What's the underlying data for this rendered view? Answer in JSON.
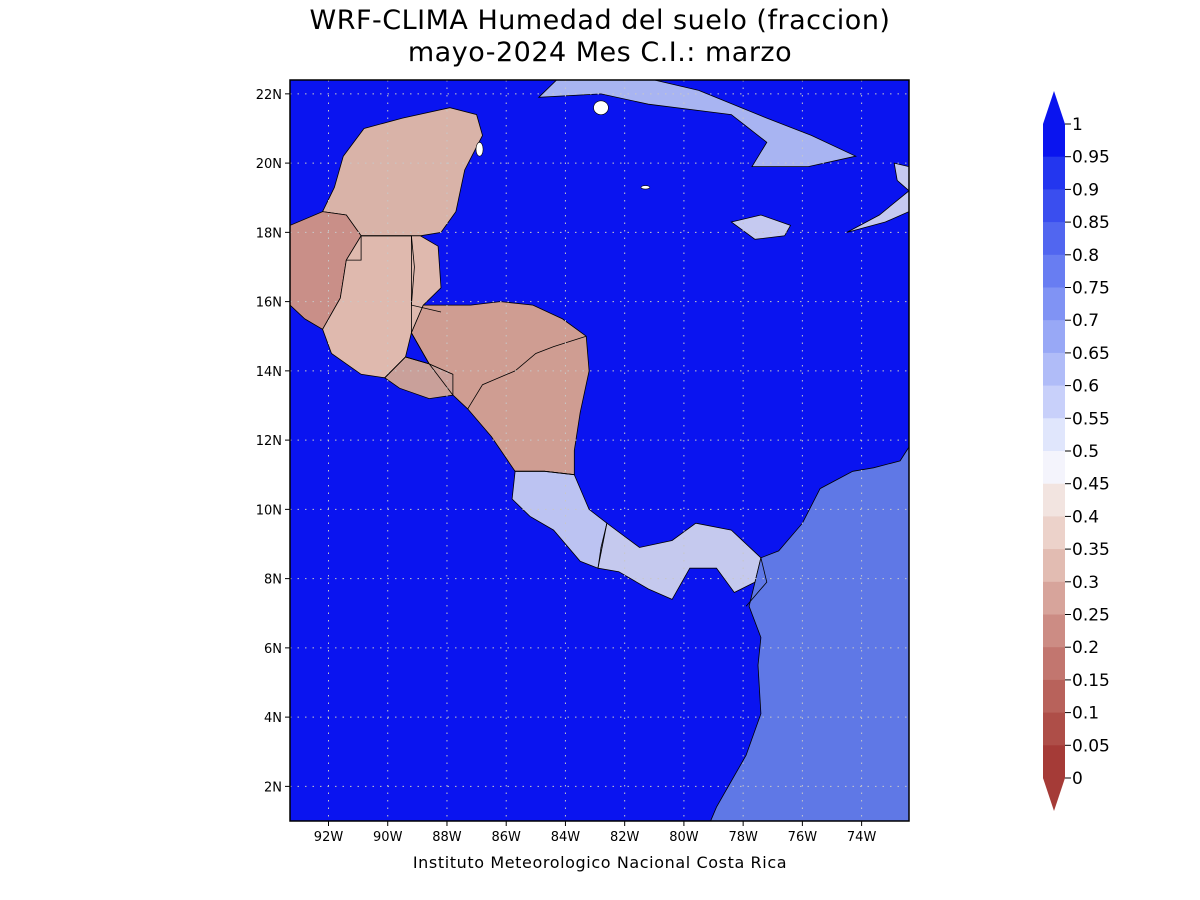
{
  "title": "WRF-CLIMA Humedad del suelo (fraccion)",
  "subtitle": "mayo-2024 Mes C.I.: marzo",
  "credit": "Instituto Meteorologico Nacional Costa Rica",
  "map": {
    "lon_range": [
      -93.3,
      -72.4
    ],
    "lat_range": [
      1.0,
      22.4
    ],
    "lat_ticks": [
      {
        "value": 22,
        "label": "22N"
      },
      {
        "value": 20,
        "label": "20N"
      },
      {
        "value": 18,
        "label": "18N"
      },
      {
        "value": 16,
        "label": "16N"
      },
      {
        "value": 14,
        "label": "14N"
      },
      {
        "value": 12,
        "label": "12N"
      },
      {
        "value": 10,
        "label": "10N"
      },
      {
        "value": 8,
        "label": "8N"
      },
      {
        "value": 6,
        "label": "6N"
      },
      {
        "value": 4,
        "label": "4N"
      },
      {
        "value": 2,
        "label": "2N"
      }
    ],
    "lon_ticks": [
      {
        "value": -92,
        "label": "92W"
      },
      {
        "value": -90,
        "label": "90W"
      },
      {
        "value": -88,
        "label": "88W"
      },
      {
        "value": -86,
        "label": "86W"
      },
      {
        "value": -84,
        "label": "84W"
      },
      {
        "value": -82,
        "label": "82W"
      },
      {
        "value": -80,
        "label": "80W"
      },
      {
        "value": -78,
        "label": "78W"
      },
      {
        "value": -76,
        "label": "76W"
      },
      {
        "value": -74,
        "label": "74W"
      }
    ],
    "ocean_color": "#0a14f0",
    "regions": [
      {
        "name": "yucatan",
        "fill": "#d9b3a8",
        "points": [
          [
            -91.5,
            20.2
          ],
          [
            -90.8,
            21.0
          ],
          [
            -89.5,
            21.3
          ],
          [
            -87.9,
            21.6
          ],
          [
            -87.0,
            21.4
          ],
          [
            -86.8,
            20.8
          ],
          [
            -87.4,
            19.8
          ],
          [
            -87.7,
            18.6
          ],
          [
            -88.2,
            18.0
          ],
          [
            -88.9,
            17.9
          ],
          [
            -90.9,
            17.9
          ],
          [
            -91.4,
            18.5
          ],
          [
            -92.2,
            18.6
          ],
          [
            -91.8,
            19.3
          ]
        ]
      },
      {
        "name": "southern-mexico",
        "fill": "#c98f88",
        "points": [
          [
            -93.3,
            18.2
          ],
          [
            -92.2,
            18.6
          ],
          [
            -91.4,
            18.5
          ],
          [
            -90.9,
            17.9
          ],
          [
            -91.4,
            17.2
          ],
          [
            -91.6,
            16.1
          ],
          [
            -92.2,
            15.2
          ],
          [
            -92.8,
            15.5
          ],
          [
            -93.3,
            15.9
          ]
        ]
      },
      {
        "name": "guatemala-belize",
        "fill": "#dfb9ae",
        "points": [
          [
            -90.9,
            17.9
          ],
          [
            -88.9,
            17.9
          ],
          [
            -88.3,
            17.6
          ],
          [
            -88.2,
            16.4
          ],
          [
            -88.8,
            15.9
          ],
          [
            -89.2,
            15.1
          ],
          [
            -89.4,
            14.4
          ],
          [
            -90.1,
            13.8
          ],
          [
            -90.9,
            13.9
          ],
          [
            -91.9,
            14.5
          ],
          [
            -92.2,
            15.2
          ],
          [
            -91.6,
            16.1
          ],
          [
            -91.4,
            17.2
          ]
        ]
      },
      {
        "name": "el-salvador",
        "fill": "#c9a09a",
        "points": [
          [
            -90.1,
            13.8
          ],
          [
            -89.4,
            14.4
          ],
          [
            -88.6,
            14.2
          ],
          [
            -87.8,
            13.9
          ],
          [
            -87.8,
            13.3
          ],
          [
            -88.6,
            13.2
          ],
          [
            -89.6,
            13.5
          ]
        ]
      },
      {
        "name": "honduras-nicaragua",
        "fill": "#cf9d92",
        "points": [
          [
            -89.2,
            15.1
          ],
          [
            -88.8,
            15.9
          ],
          [
            -88.0,
            15.9
          ],
          [
            -87.2,
            15.9
          ],
          [
            -86.2,
            16.0
          ],
          [
            -85.1,
            15.9
          ],
          [
            -84.1,
            15.5
          ],
          [
            -83.3,
            15.0
          ],
          [
            -83.2,
            14.0
          ],
          [
            -83.5,
            12.8
          ],
          [
            -83.7,
            11.7
          ],
          [
            -83.7,
            11.0
          ],
          [
            -84.7,
            11.1
          ],
          [
            -85.7,
            11.1
          ],
          [
            -86.5,
            12.1
          ],
          [
            -87.3,
            12.9
          ],
          [
            -87.8,
            13.3
          ],
          [
            -87.8,
            13.9
          ],
          [
            -88.6,
            14.2
          ]
        ]
      },
      {
        "name": "costa-rica",
        "fill": "#bcc3f2",
        "points": [
          [
            -85.7,
            11.1
          ],
          [
            -84.7,
            11.1
          ],
          [
            -83.7,
            11.0
          ],
          [
            -83.2,
            10.0
          ],
          [
            -82.6,
            9.6
          ],
          [
            -82.9,
            8.3
          ],
          [
            -83.5,
            8.5
          ],
          [
            -84.4,
            9.4
          ],
          [
            -85.2,
            9.8
          ],
          [
            -85.8,
            10.3
          ]
        ]
      },
      {
        "name": "panama",
        "fill": "#c5c9ee",
        "points": [
          [
            -82.6,
            9.6
          ],
          [
            -81.5,
            8.9
          ],
          [
            -80.4,
            9.1
          ],
          [
            -79.6,
            9.6
          ],
          [
            -78.4,
            9.4
          ],
          [
            -77.4,
            8.6
          ],
          [
            -77.6,
            7.9
          ],
          [
            -78.3,
            7.6
          ],
          [
            -78.9,
            8.3
          ],
          [
            -79.8,
            8.3
          ],
          [
            -80.4,
            7.4
          ],
          [
            -81.2,
            7.7
          ],
          [
            -82.2,
            8.2
          ],
          [
            -82.9,
            8.3
          ]
        ]
      },
      {
        "name": "colombia",
        "fill": "#5f78e6",
        "points": [
          [
            -72.4,
            11.8
          ],
          [
            -72.7,
            11.4
          ],
          [
            -73.6,
            11.2
          ],
          [
            -74.3,
            11.1
          ],
          [
            -75.4,
            10.6
          ],
          [
            -76.0,
            9.6
          ],
          [
            -76.8,
            8.8
          ],
          [
            -77.4,
            8.6
          ],
          [
            -77.6,
            7.9
          ],
          [
            -77.8,
            7.2
          ],
          [
            -77.4,
            6.3
          ],
          [
            -77.5,
            5.5
          ],
          [
            -77.4,
            4.1
          ],
          [
            -77.9,
            2.9
          ],
          [
            -78.9,
            1.4
          ],
          [
            -79.1,
            1.0
          ],
          [
            -72.4,
            1.0
          ]
        ]
      },
      {
        "name": "cuba",
        "fill": "#a8b4f2",
        "points": [
          [
            -84.9,
            21.9
          ],
          [
            -84.3,
            22.4
          ],
          [
            -81.0,
            22.4
          ],
          [
            -79.5,
            22.1
          ],
          [
            -77.2,
            21.3
          ],
          [
            -75.7,
            20.8
          ],
          [
            -74.2,
            20.2
          ],
          [
            -75.8,
            19.9
          ],
          [
            -77.7,
            19.9
          ],
          [
            -77.2,
            20.6
          ],
          [
            -78.4,
            21.4
          ],
          [
            -81.2,
            21.7
          ],
          [
            -82.8,
            22.0
          ]
        ]
      },
      {
        "name": "jamaica",
        "fill": "#c5c9f0",
        "points": [
          [
            -78.4,
            18.3
          ],
          [
            -77.4,
            18.5
          ],
          [
            -76.4,
            18.2
          ],
          [
            -76.6,
            17.9
          ],
          [
            -77.6,
            17.8
          ]
        ]
      },
      {
        "name": "hispaniola",
        "fill": "#c5c9f0",
        "points": [
          [
            -74.5,
            18.0
          ],
          [
            -73.2,
            18.3
          ],
          [
            -72.4,
            18.6
          ],
          [
            -72.4,
            19.9
          ],
          [
            -72.9,
            20.0
          ],
          [
            -72.8,
            19.5
          ],
          [
            -72.4,
            19.2
          ],
          [
            -73.4,
            18.5
          ]
        ]
      }
    ],
    "islands": [
      {
        "name": "isla-de-la-juventud",
        "fill": "#ffffff",
        "lon": -82.8,
        "lat": 21.6,
        "rx": 0.25,
        "ry": 0.2
      },
      {
        "name": "grand-cayman",
        "fill": "#ffffff",
        "lon": -81.3,
        "lat": 19.3,
        "rx": 0.15,
        "ry": 0.05
      },
      {
        "name": "cozumel",
        "fill": "#ffffff",
        "lon": -86.9,
        "lat": 20.4,
        "rx": 0.12,
        "ry": 0.2
      }
    ],
    "borders": [
      [
        [
          -91.4,
          17.2
        ],
        [
          -90.9,
          17.2
        ],
        [
          -90.9,
          17.9
        ],
        [
          -89.2,
          17.9
        ],
        [
          -89.2,
          15.9
        ]
      ],
      [
        [
          -89.2,
          17.9
        ],
        [
          -89.1,
          17.0
        ],
        [
          -89.2,
          15.9
        ],
        [
          -88.2,
          15.7
        ]
      ],
      [
        [
          -89.2,
          15.9
        ],
        [
          -89.2,
          15.1
        ],
        [
          -88.6,
          14.2
        ],
        [
          -87.8,
          13.3
        ]
      ],
      [
        [
          -90.1,
          13.8
        ],
        [
          -89.4,
          14.4
        ],
        [
          -88.6,
          14.2
        ]
      ],
      [
        [
          -87.3,
          12.9
        ],
        [
          -86.8,
          13.6
        ],
        [
          -85.7,
          14.0
        ],
        [
          -85.0,
          14.5
        ],
        [
          -84.4,
          14.7
        ],
        [
          -83.3,
          15.0
        ]
      ],
      [
        [
          -85.7,
          11.1
        ],
        [
          -84.7,
          11.1
        ],
        [
          -83.7,
          11.0
        ]
      ],
      [
        [
          -82.6,
          9.6
        ],
        [
          -82.8,
          8.9
        ],
        [
          -82.9,
          8.3
        ]
      ],
      [
        [
          -77.4,
          8.6
        ],
        [
          -77.2,
          7.9
        ],
        [
          -77.9,
          7.2
        ]
      ]
    ]
  },
  "colorbar": {
    "labels": [
      "1",
      "0.95",
      "0.9",
      "0.85",
      "0.8",
      "0.75",
      "0.7",
      "0.65",
      "0.6",
      "0.55",
      "0.5",
      "0.45",
      "0.4",
      "0.35",
      "0.3",
      "0.25",
      "0.2",
      "0.15",
      "0.1",
      "0.05",
      "0"
    ],
    "colors": [
      "#0a14ef",
      "#2336ef",
      "#3a4eef",
      "#5166f0",
      "#687df2",
      "#8093f4",
      "#98a8f6",
      "#b0bcf8",
      "#c8d0fa",
      "#e0e6fc",
      "#f4f4fc",
      "#f2e4e0",
      "#ecd2ca",
      "#e2bcb2",
      "#d7a49b",
      "#cc8c84",
      "#c2766f",
      "#b8625b",
      "#ae4e48",
      "#a53b37"
    ],
    "top_color": "#0a14ef",
    "bottom_color": "#a53b37"
  }
}
